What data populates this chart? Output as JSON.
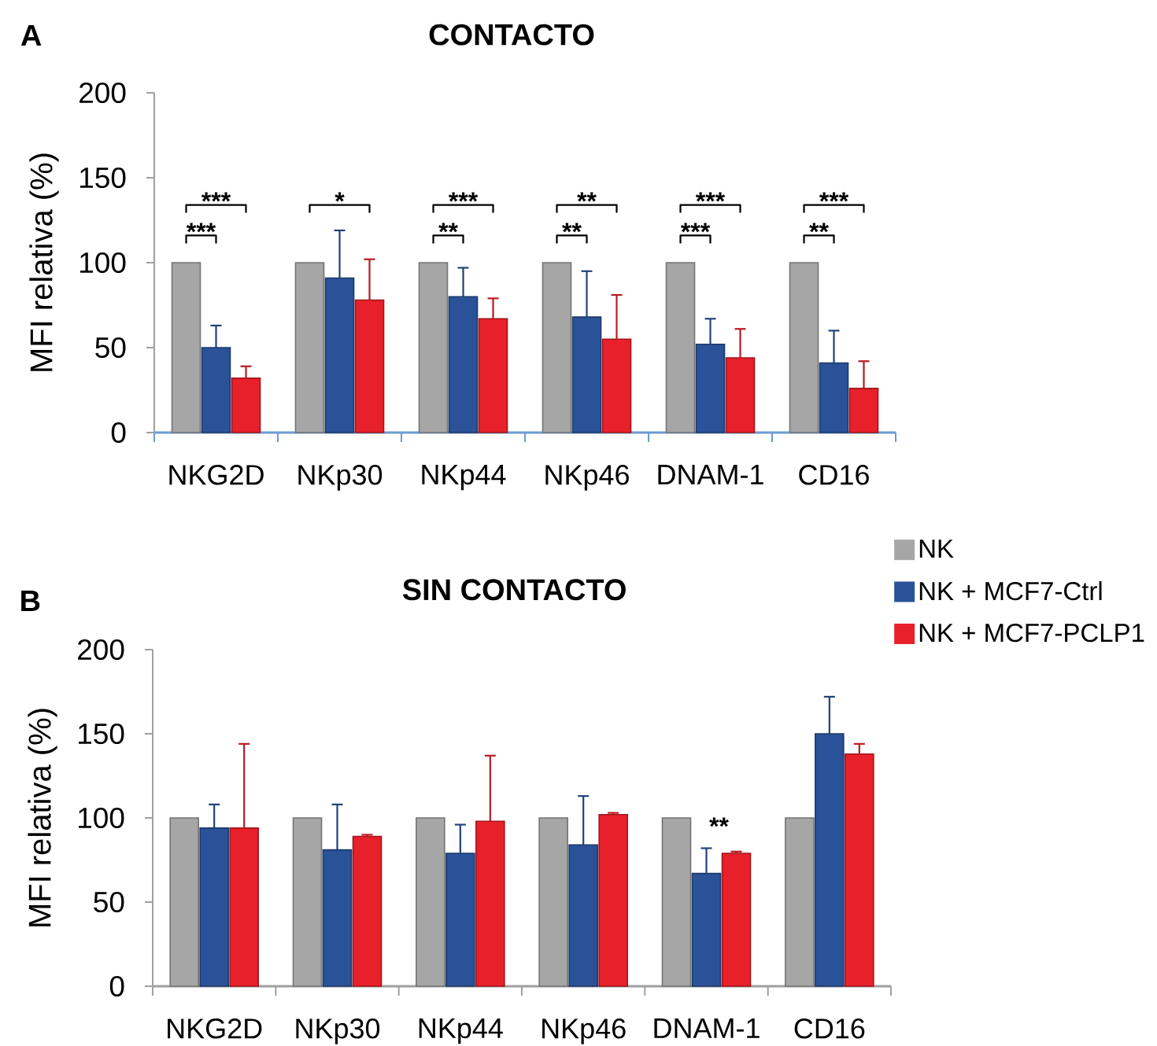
{
  "chart_data": [
    {
      "type": "bar",
      "title": "CONTACTO",
      "ylabel": "MFI relativa (%)",
      "categories": [
        "NKG2D",
        "NKp30",
        "NKp44",
        "NKp46",
        "DNAM-1",
        "CD16"
      ],
      "series": [
        {
          "color": "#a6a6a6",
          "values": [
            100,
            100,
            100,
            100,
            100,
            100
          ]
        },
        {
          "color": "#2a5298",
          "values": [
            50,
            91,
            80,
            68,
            52,
            41
          ],
          "errors": [
            [
              50,
              63
            ],
            [
              91,
              119
            ],
            [
              80,
              97
            ],
            [
              68,
              95
            ],
            [
              52,
              67
            ],
            [
              41,
              60
            ]
          ]
        },
        {
          "color": "#e8202a",
          "values": [
            32,
            78,
            67,
            55,
            44,
            26
          ],
          "errors": [
            [
              32,
              39
            ],
            [
              78,
              102
            ],
            [
              67,
              79
            ],
            [
              55,
              81
            ],
            [
              44,
              61
            ],
            [
              26,
              42
            ]
          ]
        }
      ],
      "ylim": [
        0,
        200
      ],
      "yticks": [
        0,
        50,
        100,
        150,
        200
      ],
      "annotations": [
        "A",
        "***",
        "***",
        "*",
        "**",
        "***",
        "**",
        "**",
        "***",
        "***",
        "**",
        "***"
      ]
    },
    {
      "type": "bar",
      "title": "SIN CONTACTO",
      "ylabel": "MFI relativa (%)",
      "categories": [
        "NKG2D",
        "NKp30",
        "NKp44",
        "NKp46",
        "DNAM-1",
        "CD16"
      ],
      "series": [
        {
          "name": "NK",
          "color": "#a6a6a6",
          "values": [
            100,
            100,
            100,
            100,
            100,
            100
          ]
        },
        {
          "name": "NK + MCF7-Ctrl",
          "color": "#2a5298",
          "values": [
            94,
            81,
            79,
            84,
            67,
            150
          ],
          "errors": [
            [
              94,
              108
            ],
            [
              81,
              108
            ],
            [
              79,
              96
            ],
            [
              84,
              113
            ],
            [
              67,
              82
            ],
            [
              150,
              172
            ]
          ]
        },
        {
          "name": "NK + MCF7-PCLP1",
          "color": "#e8202a",
          "values": [
            94,
            89,
            98,
            102,
            79,
            138
          ],
          "errors": [
            [
              94,
              144
            ],
            [
              89,
              90
            ],
            [
              98,
              137
            ],
            [
              102,
              103
            ],
            [
              79,
              80
            ],
            [
              138,
              144
            ]
          ]
        }
      ],
      "ylim": [
        0,
        200
      ],
      "yticks": [
        0,
        50,
        100,
        150,
        200
      ],
      "legend": "top right",
      "annotations": [
        "B",
        "**"
      ]
    }
  ]
}
